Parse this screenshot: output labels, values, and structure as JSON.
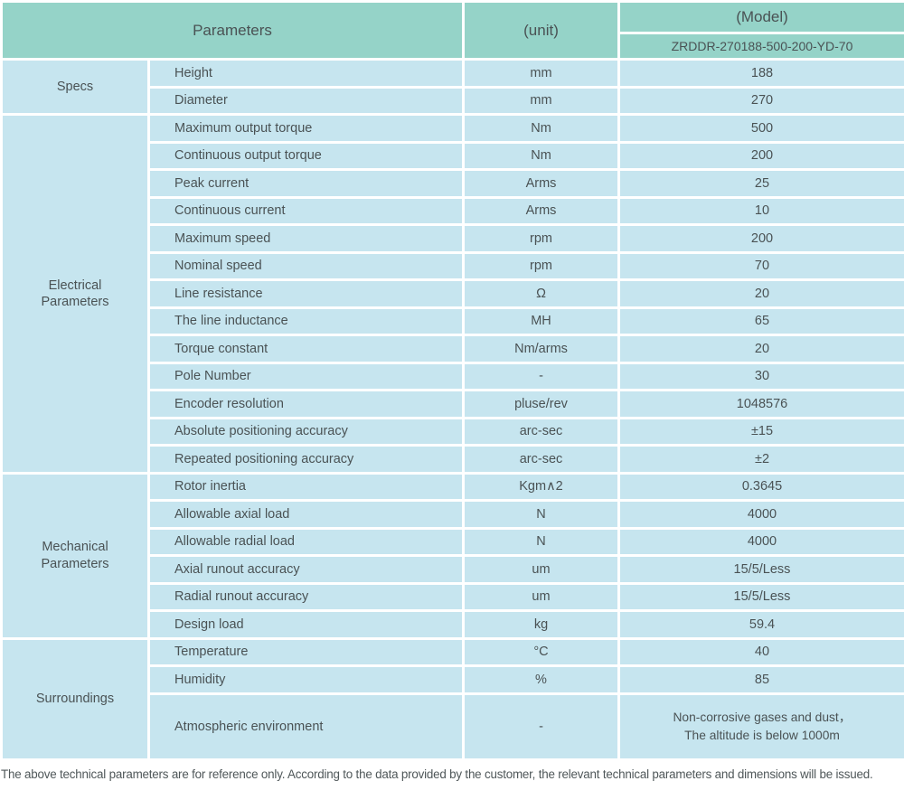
{
  "table": {
    "header": {
      "parameters_label": "Parameters",
      "unit_label": "(unit)",
      "model_label": "(Model)",
      "model_value": "ZRDDR-270188-500-200-YD-70"
    },
    "sections": [
      {
        "name": "Specs",
        "rows": [
          {
            "param": "Height",
            "unit": "mm",
            "value": "188"
          },
          {
            "param": "Diameter",
            "unit": "mm",
            "value": "270"
          }
        ]
      },
      {
        "name": "Electrical Parameters",
        "rows": [
          {
            "param": "Maximum output torque",
            "unit": "Nm",
            "value": "500"
          },
          {
            "param": "Continuous output torque",
            "unit": "Nm",
            "value": "200"
          },
          {
            "param": "Peak current",
            "unit": "Arms",
            "value": "25"
          },
          {
            "param": "Continuous current",
            "unit": "Arms",
            "value": "10"
          },
          {
            "param": "Maximum speed",
            "unit": "rpm",
            "value": "200"
          },
          {
            "param": "Nominal speed",
            "unit": "rpm",
            "value": "70"
          },
          {
            "param": "Line resistance",
            "unit": "Ω",
            "value": "20"
          },
          {
            "param": "The line inductance",
            "unit": "MH",
            "value": "65"
          },
          {
            "param": "Torque constant",
            "unit": "Nm/arms",
            "value": "20"
          },
          {
            "param": "Pole Number",
            "unit": "-",
            "value": "30"
          },
          {
            "param": "Encoder resolution",
            "unit": "pluse/rev",
            "value": "1048576"
          },
          {
            "param": "Absolute positioning accuracy",
            "unit": "arc-sec",
            "value": "±15"
          },
          {
            "param": "Repeated positioning accuracy",
            "unit": "arc-sec",
            "value": "±2"
          }
        ]
      },
      {
        "name": "Mechanical Parameters",
        "rows": [
          {
            "param": "Rotor inertia",
            "unit": "Kgm∧2",
            "value": "0.3645"
          },
          {
            "param": "Allowable axial load",
            "unit": "N",
            "value": "4000"
          },
          {
            "param": "Allowable radial load",
            "unit": "N",
            "value": "4000"
          },
          {
            "param": "Axial runout accuracy",
            "unit": "um",
            "value": "15/5/Less"
          },
          {
            "param": "Radial runout accuracy",
            "unit": "um",
            "value": "15/5/Less"
          },
          {
            "param": "Design load",
            "unit": "kg",
            "value": "59.4"
          }
        ]
      },
      {
        "name": "Surroundings",
        "rows": [
          {
            "param": "Temperature",
            "unit": "°C",
            "value": "40"
          },
          {
            "param": "Humidity",
            "unit": "%",
            "value": "85"
          },
          {
            "param": "Atmospheric environment",
            "unit": "-",
            "value": "Non-corrosive gases and dust，\nThe altitude is below 1000m"
          }
        ]
      }
    ]
  },
  "footer": {
    "note": "The above technical parameters are for reference only. According to the data provided by the customer, the relevant technical parameters and dimensions will be issued."
  },
  "colors": {
    "header_bg": "#95d3c8",
    "row_bg": "#c6e5ef",
    "grid_gap": "#ffffff",
    "text": "#4a5254"
  }
}
